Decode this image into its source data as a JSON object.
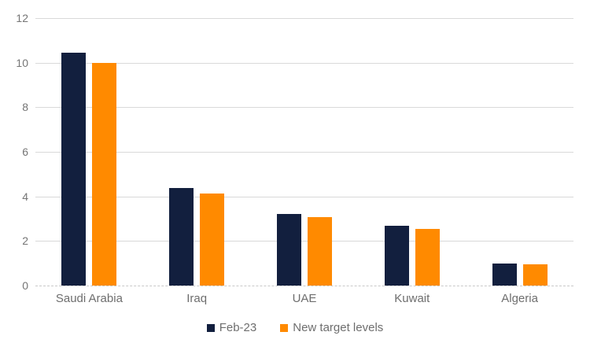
{
  "chart_data": {
    "type": "bar",
    "title": "",
    "xlabel": "",
    "ylabel": "",
    "categories": [
      "Saudi Arabia",
      "Iraq",
      "UAE",
      "Kuwait",
      "Algeria"
    ],
    "series": [
      {
        "name": "Feb-23",
        "color": "#121f3e",
        "values": [
          10.45,
          4.36,
          3.22,
          2.68,
          1.0
        ]
      },
      {
        "name": "New target levels",
        "color": "#ff8a00",
        "values": [
          9.98,
          4.14,
          3.06,
          2.55,
          0.96
        ]
      }
    ],
    "ylim": [
      0,
      12
    ],
    "yticks": [
      0,
      2,
      4,
      6,
      8,
      10,
      12
    ],
    "grid": true,
    "legend_position": "bottom"
  },
  "colors": {
    "background": "#ffffff",
    "gridline": "#d9d9d9",
    "axis_text": "#757575",
    "category_text": "#6e6e6e",
    "legend_text": "#6e6e6e"
  }
}
